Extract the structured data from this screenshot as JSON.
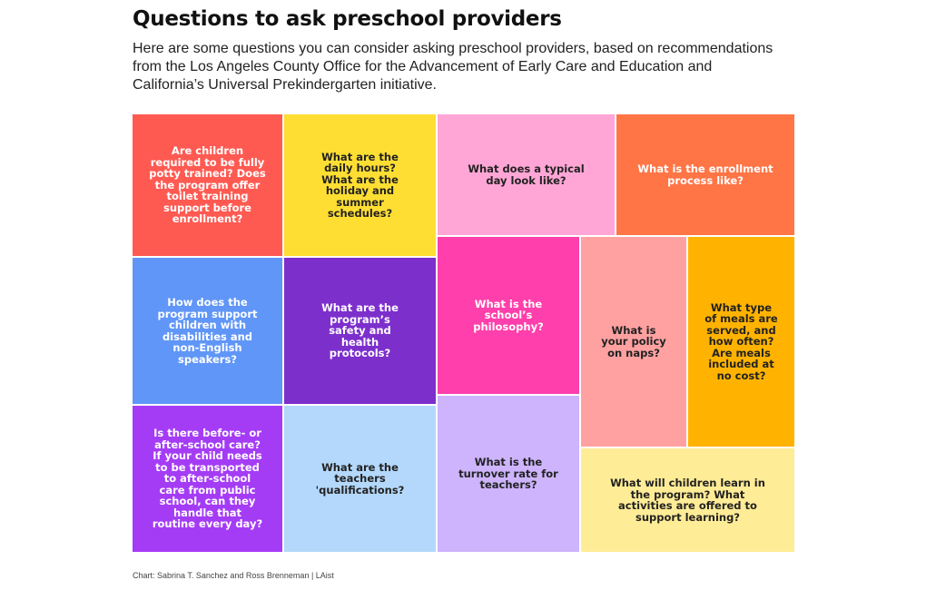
{
  "header": {
    "title": "Questions to ask preschool providers",
    "subtitle": "Here are some questions you can consider asking preschool providers, based on recommendations from the Los Angeles County Office for the Advancement of Early Care and Education and California’s Universal Prekindergarten initiative."
  },
  "source": "Chart: Sabrina T. Sanchez and Ross Brenneman | LAist",
  "chart_data": {
    "type": "treemap",
    "title": "Questions to ask preschool providers",
    "items": [
      {
        "label": "Are children required to be fully potty trained? Does the program offer toilet training support before enrollment?",
        "color": "#ff5a52",
        "text_color": "#ffffff"
      },
      {
        "label": "What are the daily hours? What are the holiday and summer schedules?",
        "color": "#ffde33",
        "text_color": "#222222"
      },
      {
        "label": "What does a typical day look like?",
        "color": "#ffa6d6",
        "text_color": "#222222"
      },
      {
        "label": "What is the enrollment process like?",
        "color": "#ff7546",
        "text_color": "#ffffff"
      },
      {
        "label": "How does the program support children with disabilities and non-English speakers?",
        "color": "#6096f7",
        "text_color": "#ffffff"
      },
      {
        "label": "What are the program’s safety and health protocols?",
        "color": "#7d2fcc",
        "text_color": "#ffffff"
      },
      {
        "label": "What is the school’s philosophy?",
        "color": "#ff3fab",
        "text_color": "#ffffff"
      },
      {
        "label": "What is your policy on naps?",
        "color": "#ffa1a1",
        "text_color": "#222222"
      },
      {
        "label": "What type of meals are served, and how often? Are meals included at no cost?",
        "color": "#ffb300",
        "text_color": "#222222"
      },
      {
        "label": "Is there before- or after-school care? If your child needs to be transported to after-school care from public school, can they handle that routine every day?",
        "color": "#a53cf5",
        "text_color": "#ffffff"
      },
      {
        "label": "What are the teachers 'qualifications?",
        "color": "#b4d8fb",
        "text_color": "#222222"
      },
      {
        "label": "What is the turnover rate for teachers?",
        "color": "#cdb4fc",
        "text_color": "#222222"
      },
      {
        "label": "What will children learn in the program? What activities are offered to support learning?",
        "color": "#ffec96",
        "text_color": "#222222"
      }
    ]
  }
}
